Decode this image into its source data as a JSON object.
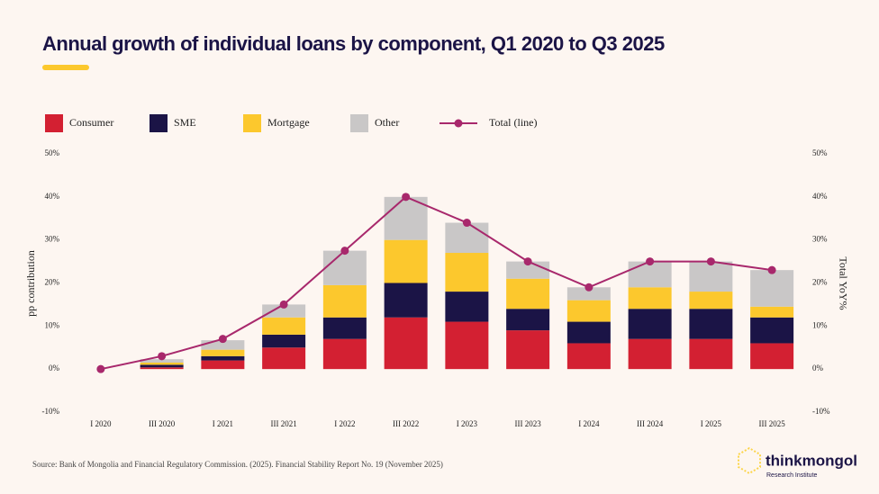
{
  "chart_data": {
    "type": "stacked_bar_line",
    "title": "Annual growth of individual loans by component, Q1 2020 to Q3 2025",
    "y_label": "pp contribution",
    "y2_label": "Total YoY%",
    "categories": [
      "I 2020",
      "III 2020",
      "I 2021",
      "III 2021",
      "I 2022",
      "III 2022",
      "I 2023",
      "III 2023",
      "I 2024",
      "III 2024",
      "I 2025",
      "III 2025"
    ],
    "series": [
      {
        "name": "Consumer",
        "color": "#d32032",
        "values": [
          0,
          0.4,
          2,
          5,
          7,
          12,
          11,
          9,
          6,
          7,
          7,
          6
        ]
      },
      {
        "name": "SME",
        "color": "#1b1446",
        "values": [
          0,
          0.6,
          1,
          3,
          5,
          8,
          7,
          5,
          5,
          7,
          7,
          6
        ]
      },
      {
        "name": "Mortgage",
        "color": "#fcc82d",
        "values": [
          0,
          0.5,
          1.5,
          4,
          7.5,
          10,
          9,
          7,
          5,
          5,
          4,
          2.5
        ]
      },
      {
        "name": "Other",
        "color": "#c9c7c7",
        "values": [
          0,
          0.8,
          2.2,
          3,
          8,
          10,
          7,
          4,
          3,
          6,
          7,
          8.5
        ]
      },
      {
        "name": "Total (line)",
        "type": "line",
        "axis": "y2",
        "color": "#a8286c",
        "values": [
          0,
          3,
          7,
          15,
          27.5,
          40,
          34,
          25,
          19,
          25,
          25,
          23
        ]
      }
    ],
    "ylim": [
      -10,
      50
    ],
    "yticks": [
      {
        "value": -10,
        "label": "-10%"
      },
      {
        "value": 0,
        "label": "0%"
      },
      {
        "value": 10,
        "label": "10%"
      },
      {
        "value": 20,
        "label": "20%"
      },
      {
        "value": 30,
        "label": "30%"
      },
      {
        "value": 40,
        "label": "40%"
      },
      {
        "value": 50,
        "label": "50%"
      }
    ],
    "y2lim": [
      -10,
      50
    ],
    "y2ticks": [
      {
        "value": -10,
        "label": "-10%"
      },
      {
        "value": 0,
        "label": "0%"
      },
      {
        "value": 10,
        "label": "10%"
      },
      {
        "value": 20,
        "label": "20%"
      },
      {
        "value": 30,
        "label": "30%"
      },
      {
        "value": 40,
        "label": "40%"
      },
      {
        "value": 50,
        "label": "50%"
      }
    ],
    "grid": false,
    "legend": "top",
    "source": "Source: Bank of Mongolia and Financial Regulatory Commission. (2025). Financial Stability Report No. 19 (November 2025)"
  },
  "brand": {
    "name": "thinkmongol",
    "tagline": "Research Institute"
  }
}
